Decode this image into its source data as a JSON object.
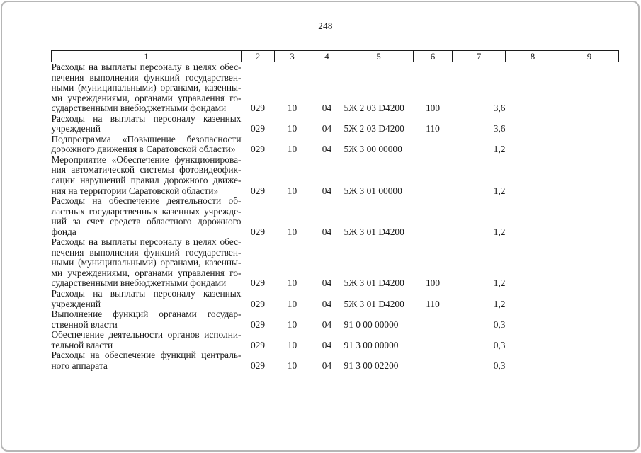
{
  "page": {
    "number": "248"
  },
  "table": {
    "header_labels": [
      "1",
      "2",
      "3",
      "4",
      "5",
      "6",
      "7",
      "8",
      "9"
    ],
    "rows": [
      {
        "lines": [
          "Расходы на выплаты персоналу в целях обес-",
          "печения выполнения функций государствен-",
          "ными (муниципальными) органами, казенны-",
          "ми учреждениями, органами управления го-",
          "сударственными внебюджетными фондами"
        ],
        "values": [
          "029",
          "10",
          "04",
          "5Ж 2 03 D4200",
          "100",
          "3,6",
          "",
          ""
        ]
      },
      {
        "lines": [
          "Расходы на выплаты персоналу казенных",
          "учреждений"
        ],
        "values": [
          "029",
          "10",
          "04",
          "5Ж 2 03 D4200",
          "110",
          "3,6",
          "",
          ""
        ]
      },
      {
        "lines": [
          "Подпрограмма «Повышение безопасности",
          "дорожного движения в Саратовской области»"
        ],
        "values": [
          "029",
          "10",
          "04",
          "5Ж 3 00 00000",
          "",
          "1,2",
          "",
          ""
        ]
      },
      {
        "lines": [
          "Мероприятие «Обеспечение функционирова-",
          "ния автоматической системы фотовидеофик-",
          "сации нарушений правил дорожного движе-",
          "ния на территории Саратовской области»"
        ],
        "values": [
          "029",
          "10",
          "04",
          "5Ж 3 01 00000",
          "",
          "1,2",
          "",
          ""
        ]
      },
      {
        "lines": [
          "Расходы на обеспечение деятельности об-",
          "ластных государственных казенных учрежде-",
          "ний за счет средств областного дорожного",
          "фонда"
        ],
        "values": [
          "029",
          "10",
          "04",
          "5Ж 3 01 D4200",
          "",
          "1,2",
          "",
          ""
        ]
      },
      {
        "lines": [
          "Расходы на выплаты персоналу в целях обес-",
          "печения выполнения функций государствен-",
          "ными (муниципальными) органами, казенны-",
          "ми учреждениями, органами управления го-",
          "сударственными внебюджетными фондами"
        ],
        "values": [
          "029",
          "10",
          "04",
          "5Ж 3 01 D4200",
          "100",
          "1,2",
          "",
          ""
        ]
      },
      {
        "lines": [
          "Расходы на выплаты персоналу казенных",
          "учреждений"
        ],
        "values": [
          "029",
          "10",
          "04",
          "5Ж 3 01 D4200",
          "110",
          "1,2",
          "",
          ""
        ]
      },
      {
        "lines": [
          "Выполнение функций органами государ-",
          "ственной власти"
        ],
        "values": [
          "029",
          "10",
          "04",
          "91 0 00 00000",
          "",
          "0,3",
          "",
          ""
        ]
      },
      {
        "lines": [
          "Обеспечение деятельности органов исполни-",
          "тельной власти"
        ],
        "values": [
          "029",
          "10",
          "04",
          "91 3 00 00000",
          "",
          "0,3",
          "",
          ""
        ]
      },
      {
        "lines": [
          "Расходы на обеспечение функций централь-",
          "ного аппарата"
        ],
        "values": [
          "029",
          "10",
          "04",
          "91 3 00 02200",
          "",
          "0,3",
          "",
          ""
        ]
      }
    ]
  }
}
